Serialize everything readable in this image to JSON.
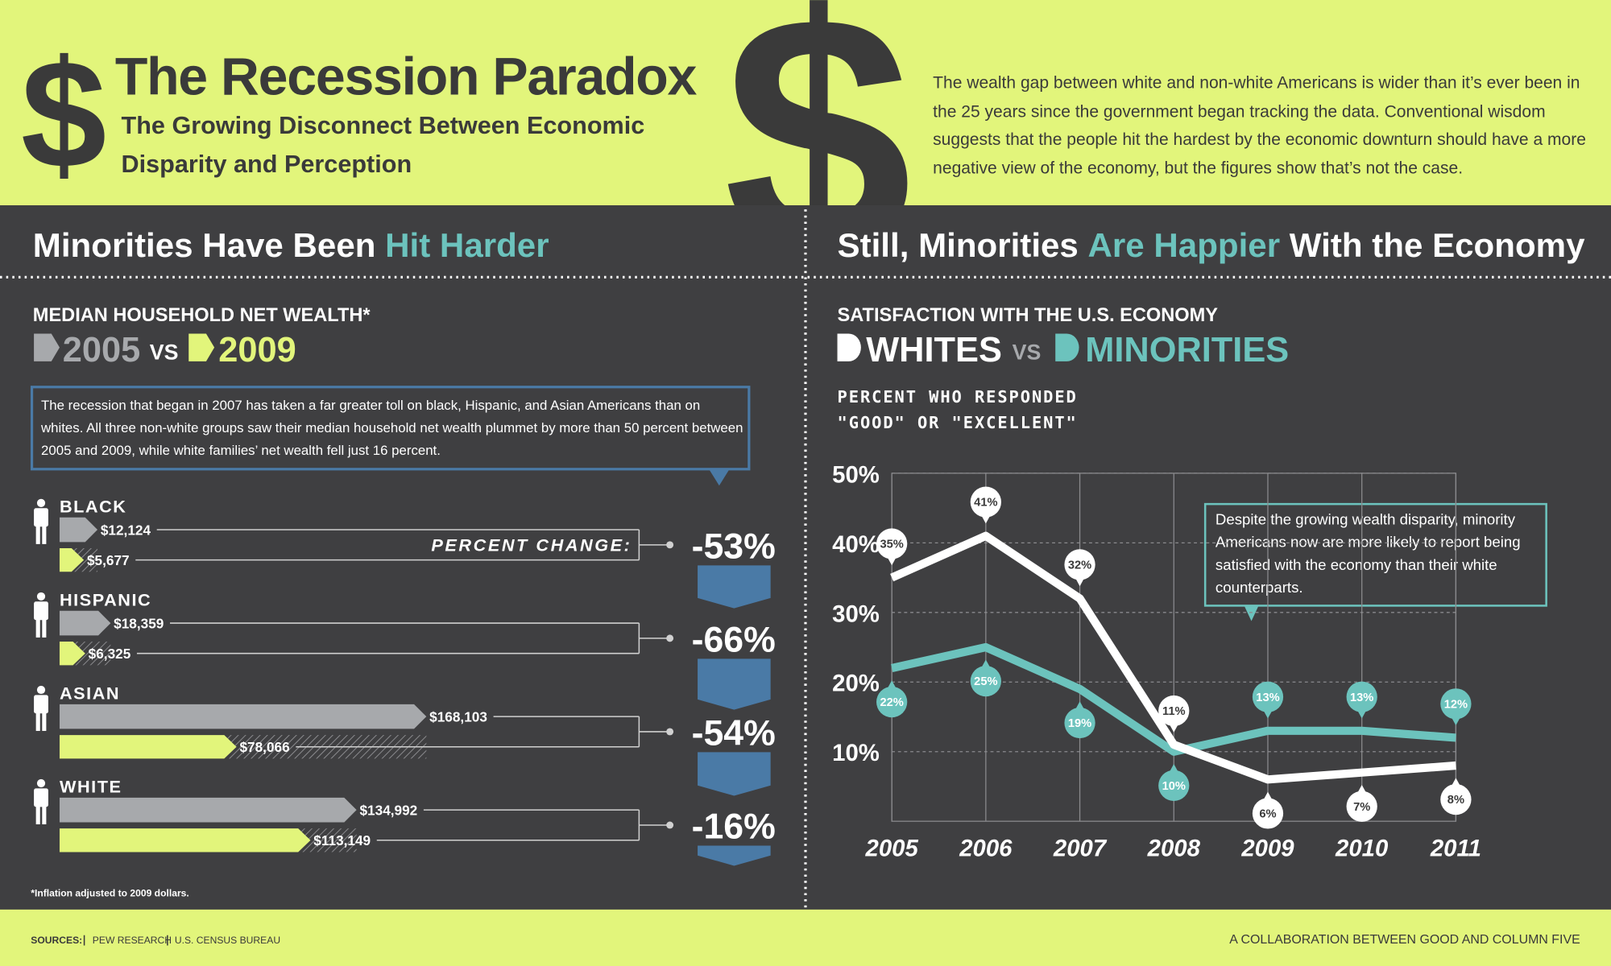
{
  "header": {
    "symbol": "$",
    "title": "The Recession Paradox",
    "subtitle": "The Growing Disconnect Between Economic Disparity and Perception",
    "intro": "The wealth gap between white and non-white Americans is wider than it’s ever been in the 25 years since the government began tracking the data. Conventional wisdom suggests that the people hit the hardest by the economic downturn should have a more negative view of the economy, but the figures show that’s not the case."
  },
  "left": {
    "heading": [
      "Minorities Have Been",
      "Hit Harder"
    ]
  },
  "right": {
    "heading": [
      "Still, Minorities",
      "Are Happier",
      "With the Economy"
    ]
  },
  "chart_data": [
    {
      "type": "bar",
      "title": "MEDIAN HOUSEHOLD NET WEALTH*",
      "legend_joiner": "VS",
      "annotation": "The recession that began in 2007 has taken a far greater toll on black, Hispanic, and Asian Americans than on whites. All three non-white groups saw their median household net wealth plummet by more than 50 percent between 2005 and 2009, while white families’ net wealth fell just 16 percent.",
      "categories": [
        "BLACK",
        "HISPANIC",
        "ASIAN",
        "WHITE"
      ],
      "series": [
        {
          "name": "2005",
          "color": "#a7a9ac",
          "values": [
            12124,
            18359,
            168103,
            134992
          ],
          "value_labels": [
            "$12,124",
            "$18,359",
            "$168,103",
            "$134,992"
          ]
        },
        {
          "name": "2009",
          "color": "#e2f57b",
          "values": [
            5677,
            6325,
            78066,
            113149
          ],
          "value_labels": [
            "$5,677",
            "$6,325",
            "$78,066",
            "$113,149"
          ]
        }
      ],
      "percent_change": {
        "label": "PERCENT CHANGE:",
        "color": "#4a7aa6",
        "values": [
          -53,
          -66,
          -54,
          -16
        ],
        "value_labels": [
          "-53%",
          "-66%",
          "-54%",
          "-16%"
        ]
      },
      "footnote": "*Inflation adjusted to 2009 dollars."
    },
    {
      "type": "line",
      "title": "SATISFACTION WITH THE U.S. ECONOMY",
      "legend_joiner": "VS",
      "y_label": "PERCENT WHO RESPONDED \"GOOD\" OR \"EXCELLENT\"",
      "annotation": "Despite the growing wealth disparity, minority Americans now are more likely to report being satisfied with the economy than their white counterparts.",
      "x": [
        2005,
        2006,
        2007,
        2008,
        2009,
        2010,
        2011
      ],
      "xlim": [
        2005,
        2011
      ],
      "xticks": [
        2005,
        2006,
        2007,
        2008,
        2009,
        2010,
        2011
      ],
      "ylim": [
        0,
        50
      ],
      "yticks": [
        {
          "value": 10,
          "label": "10%"
        },
        {
          "value": 20,
          "label": "20%"
        },
        {
          "value": 30,
          "label": "30%"
        },
        {
          "value": 40,
          "label": "40%"
        },
        {
          "value": 50,
          "label": "50%"
        }
      ],
      "grid": true,
      "series": [
        {
          "name": "WHITES",
          "color": "#ffffff",
          "values": [
            35,
            41,
            32,
            11,
            6,
            7,
            8
          ],
          "value_labels": [
            "35%",
            "41%",
            "32%",
            "11%",
            "6%",
            "7%",
            "8%"
          ]
        },
        {
          "name": "MINORITIES",
          "color": "#6cc3bd",
          "values": [
            22,
            25,
            19,
            10,
            13,
            13,
            12
          ],
          "value_labels": [
            "22%",
            "25%",
            "19%",
            "10%",
            "13%",
            "13%",
            "12%"
          ]
        }
      ]
    }
  ],
  "footer": {
    "sources_label": "SOURCES:",
    "sources": [
      "PEW RESEARCH",
      "U.S. CENSUS BUREAU"
    ],
    "credit": "A COLLABORATION BETWEEN GOOD AND COLUMN FIVE"
  }
}
